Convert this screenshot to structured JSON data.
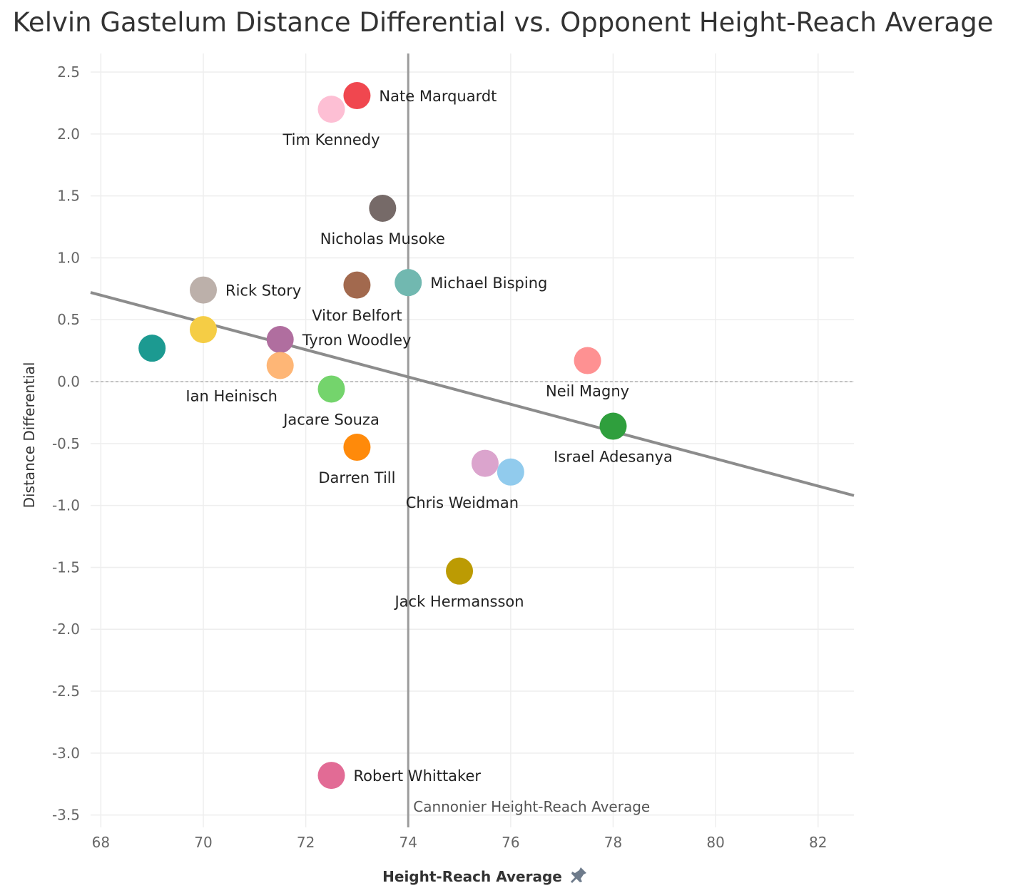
{
  "chart_data": {
    "type": "scatter",
    "title": "Kelvin Gastelum Distance Differential vs. Opponent Height-Reach Average",
    "xlabel": "Height-Reach Average",
    "ylabel": "Distance Differential",
    "xlim": [
      67.8,
      82.7
    ],
    "ylim": [
      -3.6,
      2.65
    ],
    "xticks": [
      "68",
      "70",
      "72",
      "74",
      "76",
      "78",
      "80",
      "82"
    ],
    "yticks": [
      "2.5",
      "2.0",
      "1.5",
      "1.0",
      "0.5",
      "0.0",
      "-0.5",
      "-1.0",
      "-1.5",
      "-2.0",
      "-2.5",
      "-3.0",
      "-3.5"
    ],
    "grid": true,
    "reference_line": {
      "x": 74,
      "label": "Cannonier Height-Reach Average"
    },
    "trend_line": {
      "x": [
        67.8,
        82.7
      ],
      "y": [
        0.72,
        -0.92
      ]
    },
    "zero_line": 0,
    "points": [
      {
        "name": "Nate Marquardt",
        "x": 73.0,
        "y": 2.31,
        "color": "#f0474f",
        "label_pos": "right"
      },
      {
        "name": "Tim Kennedy",
        "x": 72.5,
        "y": 2.2,
        "color": "#fdbfd4",
        "label_pos": "below"
      },
      {
        "name": "Nicholas Musoke",
        "x": 73.5,
        "y": 1.4,
        "color": "#766a68",
        "label_pos": "below"
      },
      {
        "name": "Michael Bisping",
        "x": 74.0,
        "y": 0.8,
        "color": "#71b8b0",
        "label_pos": "right"
      },
      {
        "name": "Vitor Belfort",
        "x": 73.0,
        "y": 0.78,
        "color": "#a2694e",
        "label_pos": "below"
      },
      {
        "name": "Rick Story",
        "x": 70.0,
        "y": 0.74,
        "color": "#bcb0aa",
        "label_pos": "right"
      },
      {
        "name": "",
        "x": 70.0,
        "y": 0.42,
        "color": "#f5cd45",
        "label_pos": "none"
      },
      {
        "name": "Tyron Woodley",
        "x": 71.5,
        "y": 0.34,
        "color": "#b06e9f",
        "label_pos": "right"
      },
      {
        "name": "",
        "x": 69.0,
        "y": 0.27,
        "color": "#1c9a91",
        "label_pos": "none"
      },
      {
        "name": "Neil Magny",
        "x": 77.5,
        "y": 0.17,
        "color": "#fe9192",
        "label_pos": "below"
      },
      {
        "name": "Ian Heinisch",
        "x": 71.5,
        "y": 0.13,
        "color": "#feb676",
        "label_pos": "below-left"
      },
      {
        "name": "Jacare Souza",
        "x": 72.5,
        "y": -0.06,
        "color": "#74d46c",
        "label_pos": "below"
      },
      {
        "name": "Israel Adesanya",
        "x": 78.0,
        "y": -0.36,
        "color": "#2f9f3d",
        "label_pos": "below"
      },
      {
        "name": "Darren Till",
        "x": 73.0,
        "y": -0.53,
        "color": "#ff8a0a",
        "label_pos": "below"
      },
      {
        "name": "",
        "x": 75.5,
        "y": -0.66,
        "color": "#dba4cd",
        "label_pos": "none"
      },
      {
        "name": "Chris Weidman",
        "x": 76.0,
        "y": -0.73,
        "color": "#91cbed",
        "label_pos": "below-left"
      },
      {
        "name": "Jack Hermansson",
        "x": 75.0,
        "y": -1.53,
        "color": "#bc9b03",
        "label_pos": "below"
      },
      {
        "name": "Robert Whittaker",
        "x": 72.5,
        "y": -3.18,
        "color": "#e26b95",
        "label_pos": "right"
      }
    ]
  },
  "colors": {
    "grid": "#eeeeee",
    "axis_text": "#666666",
    "trend": "#8c8c8c",
    "ref_line": "#9b9b9b",
    "pin_icon": "#6e7b8b"
  }
}
